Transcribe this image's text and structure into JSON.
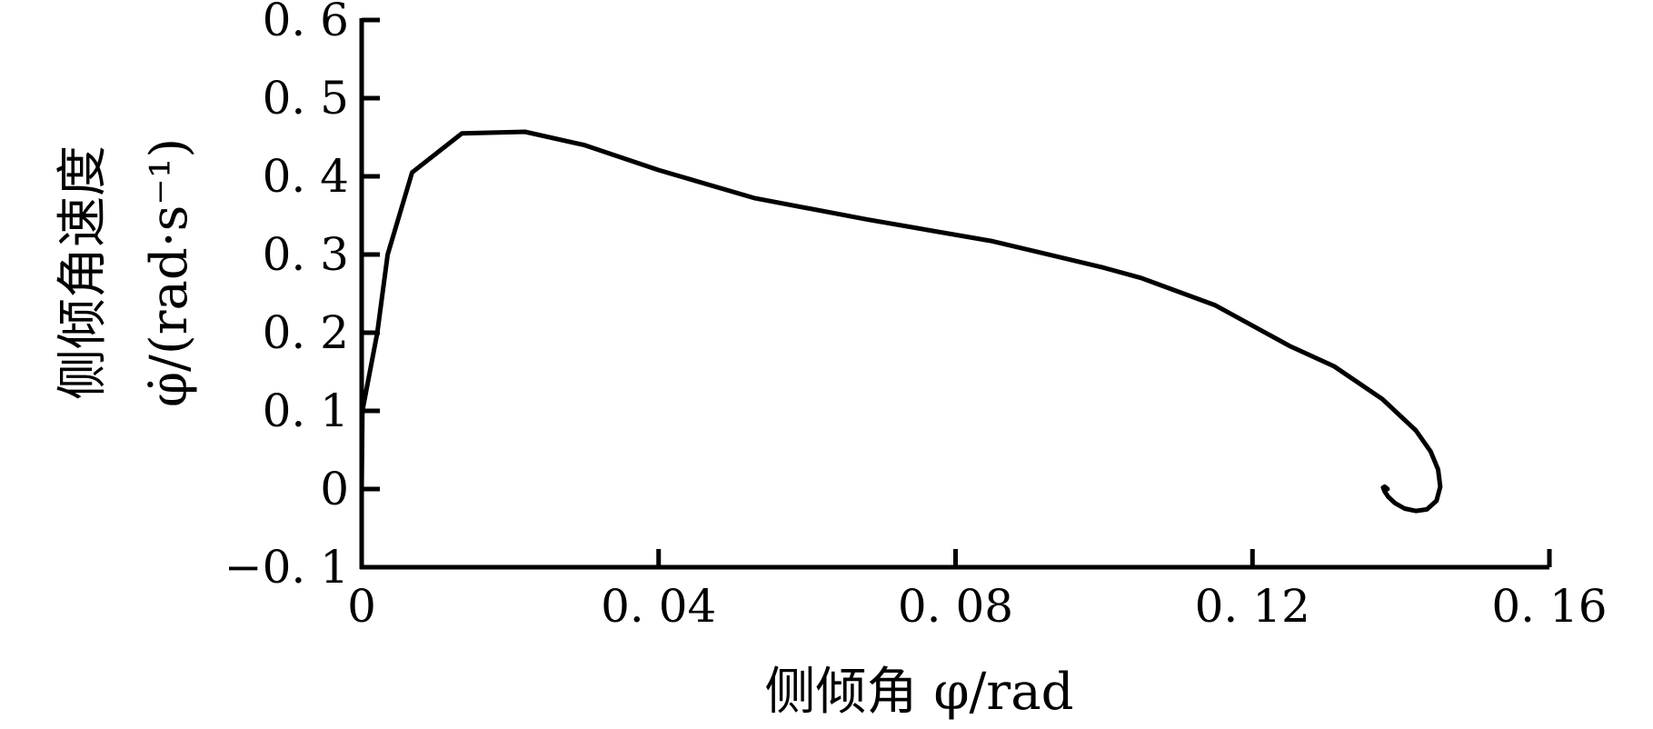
{
  "chart_data": {
    "type": "line",
    "title": "",
    "xlabel": "侧倾角 φ/rad",
    "ylabel_line1": "侧倾角速度",
    "ylabel_line2": "φ̇/(rad·s⁻¹)",
    "xlim": [
      0,
      0.16
    ],
    "ylim": [
      -0.1,
      0.6
    ],
    "x_ticks": [
      {
        "value": 0,
        "label": "0"
      },
      {
        "value": 0.04,
        "label": "0. 04"
      },
      {
        "value": 0.08,
        "label": "0. 08"
      },
      {
        "value": 0.12,
        "label": "0. 12"
      },
      {
        "value": 0.16,
        "label": "0. 16"
      }
    ],
    "y_ticks": [
      {
        "value": -0.1,
        "label": "−0. 1"
      },
      {
        "value": 0,
        "label": "0"
      },
      {
        "value": 0.1,
        "label": "0. 1"
      },
      {
        "value": 0.2,
        "label": "0. 2"
      },
      {
        "value": 0.3,
        "label": "0. 3"
      },
      {
        "value": 0.4,
        "label": "0. 4"
      },
      {
        "value": 0.5,
        "label": "0. 5"
      },
      {
        "value": 0.6,
        "label": "0. 6"
      }
    ],
    "grid": false,
    "series": [
      {
        "x": [
          0,
          0.0001,
          0.0021,
          0.0035,
          0.0068,
          0.0135,
          0.022,
          0.03,
          0.04,
          0.053,
          0.068,
          0.085,
          0.1,
          0.105,
          0.115,
          0.125,
          0.131,
          0.1375,
          0.142,
          0.144,
          0.145,
          0.1453,
          0.1448,
          0.1435,
          0.142,
          0.1405,
          0.1392,
          0.1383,
          0.1378,
          0.1376,
          0.1378,
          0.1382
        ],
        "y": [
          0,
          0.1,
          0.2,
          0.3,
          0.405,
          0.455,
          0.457,
          0.44,
          0.408,
          0.372,
          0.345,
          0.317,
          0.283,
          0.27,
          0.235,
          0.183,
          0.157,
          0.115,
          0.075,
          0.048,
          0.025,
          0.003,
          -0.015,
          -0.026,
          -0.028,
          -0.025,
          -0.018,
          -0.01,
          -0.003,
          0.002,
          0.003,
          0.0
        ]
      }
    ]
  }
}
